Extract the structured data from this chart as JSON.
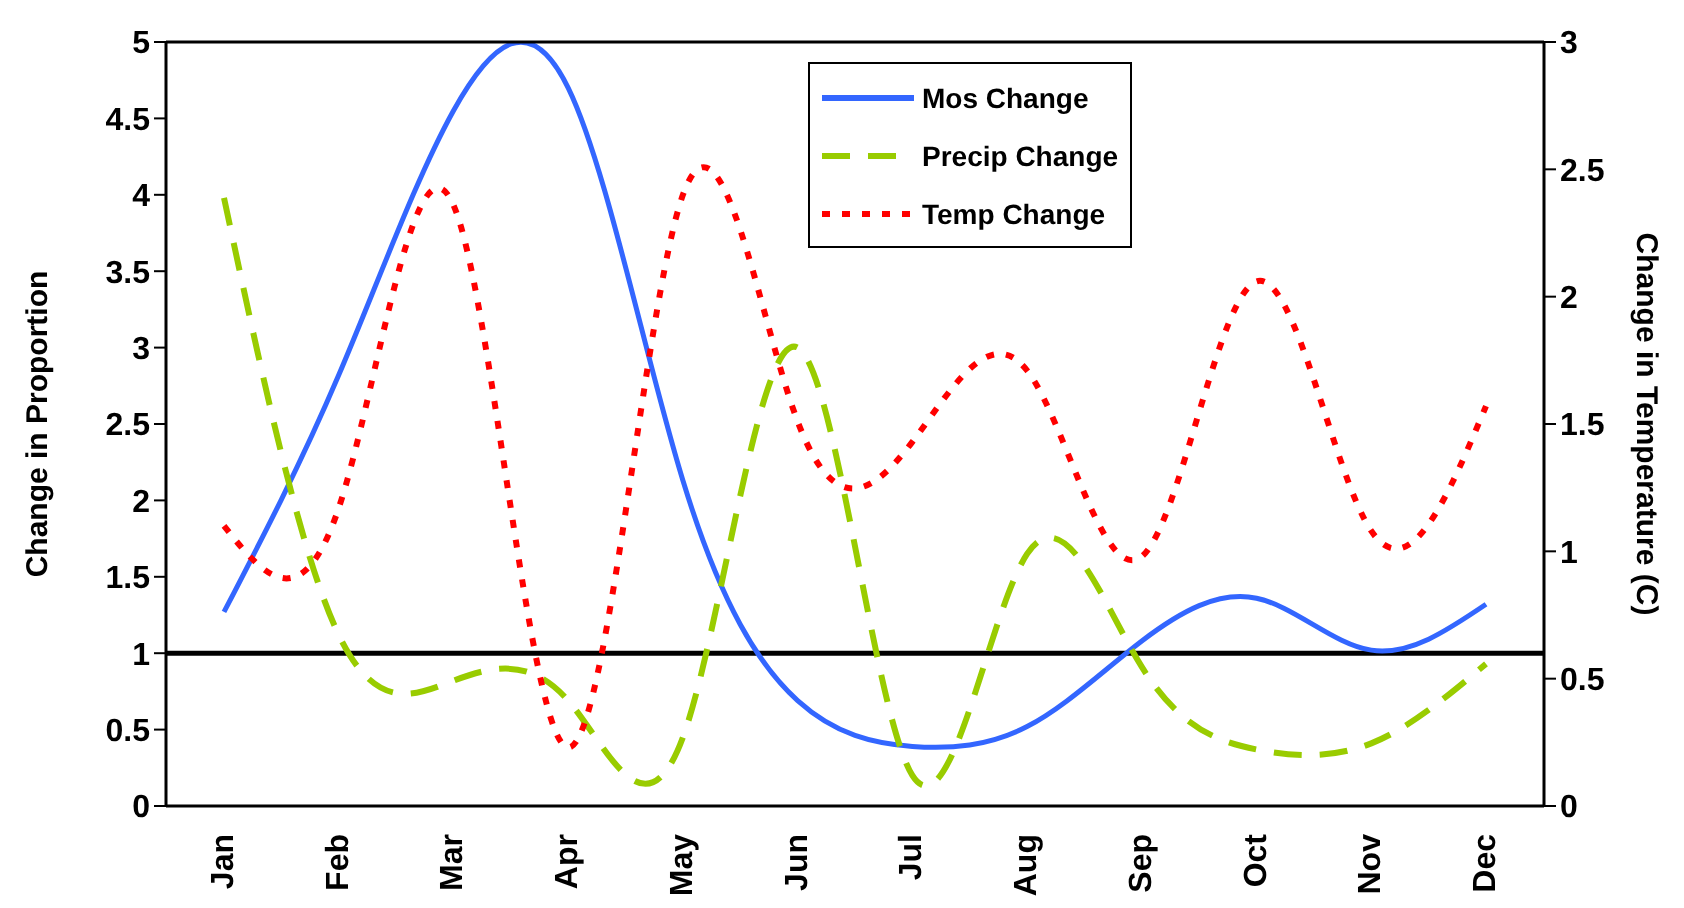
{
  "chart_data": {
    "type": "line",
    "categories": [
      "Jan",
      "Feb",
      "Mar",
      "Apr",
      "May",
      "Jun",
      "Jul",
      "Aug",
      "Sep",
      "Oct",
      "Nov",
      "Dec"
    ],
    "ylabel": "Change in Proportion",
    "y2label": "Change in Temperature (C)",
    "ylim": [
      0,
      5
    ],
    "yticks": [
      0,
      0.5,
      1,
      1.5,
      2,
      2.5,
      3,
      3.5,
      4,
      4.5,
      5
    ],
    "y2lim": [
      0,
      3
    ],
    "y2ticks": [
      0,
      0.5,
      1,
      1.5,
      2,
      2.5,
      3
    ],
    "series": [
      {
        "name": "Mos Change",
        "color": "#3366ff",
        "line_style": "solid",
        "values": [
          1.27,
          2.82,
          4.55,
          4.7,
          2.13,
          0.69,
          0.39,
          0.52,
          1.08,
          1.36,
          1.02,
          1.32
        ]
      },
      {
        "name": "Precip Change",
        "color": "#99cc00",
        "line_style": "dashed",
        "values": [
          3.98,
          1.12,
          0.82,
          0.69,
          0.45,
          3.0,
          0.2,
          1.65,
          0.91,
          0.37,
          0.41,
          0.93
        ]
      },
      {
        "name": "Temp Change",
        "color": "#ff0000",
        "line_style": "dotted",
        "axis": "y2",
        "values": [
          1.1,
          1.17,
          2.36,
          0.23,
          2.4,
          1.51,
          1.43,
          1.71,
          0.98,
          2.06,
          1.08,
          1.57
        ]
      }
    ],
    "ref_lines": [
      {
        "axis": "y",
        "value": 1,
        "color": "#000000"
      }
    ],
    "grid": false,
    "legend": "top right",
    "marker": "none"
  }
}
